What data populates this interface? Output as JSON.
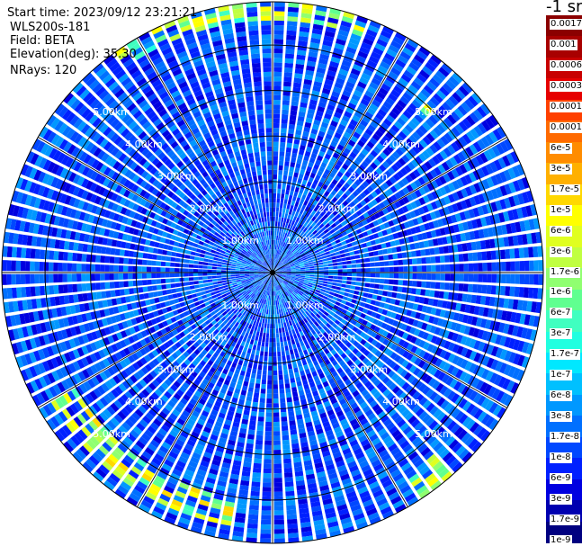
{
  "header": {
    "start_time": "Start time: 2023/09/12 23:21:21",
    "instrument": "WLS200s-181",
    "field": "Field: BETA",
    "elevation": "Elevation(deg): 35.30",
    "nrays": "NRays: 120"
  },
  "colorbar": {
    "title": "-1 sr",
    "labels": [
      "0.0017",
      "0.001",
      "0.0006",
      "0.0003",
      "0.00017",
      "0.0001",
      "6e-5",
      "3e-5",
      "1.7e-5",
      "1e-5",
      "6e-6",
      "3e-6",
      "1.7e-6",
      "1e-6",
      "6e-7",
      "3e-7",
      "1.7e-7",
      "1e-7",
      "6e-8",
      "3e-8",
      "1.7e-8",
      "1e-8",
      "6e-9",
      "3e-9",
      "1.7e-9",
      "1e-9"
    ],
    "colors": [
      "#8b0000",
      "#a80000",
      "#c80000",
      "#e60000",
      "#ff4000",
      "#ff6a00",
      "#ff8c00",
      "#ffb000",
      "#ffd800",
      "#ffff00",
      "#e0ff20",
      "#c0ff40",
      "#90ff70",
      "#60ff90",
      "#40ffc0",
      "#20ffe0",
      "#00e8ff",
      "#00c0ff",
      "#0098ff",
      "#0070ff",
      "#0048ff",
      "#0020ff",
      "#0000e0",
      "#0000b0",
      "#000080"
    ]
  },
  "chart_data": {
    "type": "heatmap",
    "projection": "polar (PPI scan)",
    "field": "BETA",
    "units": "-1 sr",
    "elevation_deg": 35.3,
    "n_rays": 120,
    "range_rings_km": [
      1.0,
      2.0,
      3.0,
      4.0,
      5.0
    ],
    "ring_labels": [
      "1.00km",
      "2.00km",
      "3.00km",
      "4.00km",
      "5.00km"
    ],
    "max_range_km": 5.95,
    "scale": "log",
    "value_range": [
      1e-09,
      0.0017
    ],
    "background_level": 1e-08,
    "features": [
      {
        "description": "elevated backscatter arc",
        "azimuth_deg": [
          190,
          240
        ],
        "range_km": [
          5.0,
          5.6
        ],
        "peak_value": 1.7e-05
      },
      {
        "description": "elevated backscatter arc",
        "azimuth_deg": [
          -35,
          20
        ],
        "range_km": [
          5.5,
          5.9
        ],
        "peak_value": 1e-05
      },
      {
        "description": "elevated backscatter patch",
        "azimuth_deg": [
          138,
          146
        ],
        "range_km": [
          5.3,
          5.9
        ],
        "peak_value": 6e-06
      },
      {
        "description": "elevated backscatter spot",
        "azimuth_deg": [
          42,
          46
        ],
        "range_km": [
          4.8,
          5.1
        ],
        "peak_value": 1.7e-05
      }
    ]
  }
}
